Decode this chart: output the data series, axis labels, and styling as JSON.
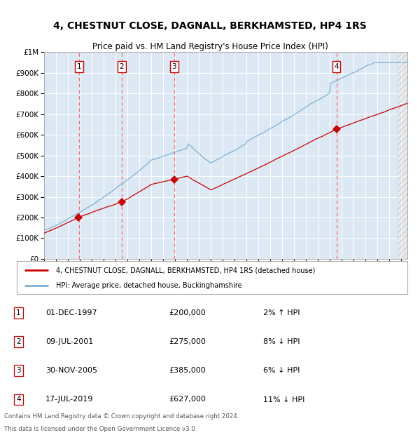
{
  "title": "4, CHESTNUT CLOSE, DAGNALL, BERKHAMSTED, HP4 1RS",
  "subtitle": "Price paid vs. HM Land Registry's House Price Index (HPI)",
  "legend_label_red": "4, CHESTNUT CLOSE, DAGNALL, BERKHAMSTED, HP4 1RS (detached house)",
  "legend_label_blue": "HPI: Average price, detached house, Buckinghamshire",
  "footer_line1": "Contains HM Land Registry data © Crown copyright and database right 2024.",
  "footer_line2": "This data is licensed under the Open Government Licence v3.0.",
  "sales": [
    {
      "num": 1,
      "date": "01-DEC-1997",
      "price": 200000,
      "year": 1997.92,
      "pct": "2%",
      "dir": "↑"
    },
    {
      "num": 2,
      "date": "09-JUL-2001",
      "price": 275000,
      "year": 2001.52,
      "pct": "8%",
      "dir": "↓"
    },
    {
      "num": 3,
      "date": "30-NOV-2005",
      "price": 385000,
      "year": 2005.91,
      "pct": "6%",
      "dir": "↓"
    },
    {
      "num": 4,
      "date": "17-JUL-2019",
      "price": 627000,
      "year": 2019.54,
      "pct": "11%",
      "dir": "↓"
    }
  ],
  "ylim": [
    0,
    1000000
  ],
  "xlim_start": 1995.0,
  "xlim_end": 2025.5,
  "background_color": "#dce9f5",
  "red_line_color": "#cc0000",
  "blue_line_color": "#7db0d4",
  "grid_color": "#ffffff",
  "dashed_line_color": "#ff6666",
  "title_fontsize": 10,
  "subtitle_fontsize": 8.5
}
